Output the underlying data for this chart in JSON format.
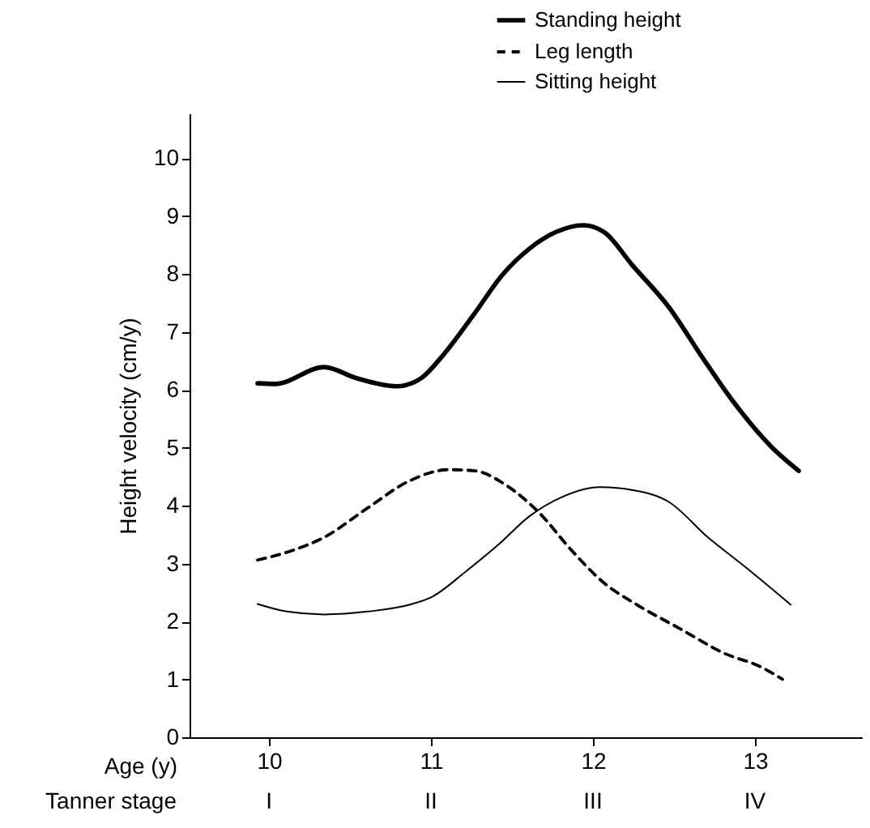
{
  "chart_data": {
    "type": "line",
    "xlabel": "Age (y)",
    "ylabel": "Height velocity (cm/y)",
    "annotations": [
      "Tanner stage",
      "I",
      "II",
      "III",
      "IV"
    ],
    "xlim": [
      9.51,
      13.66
    ],
    "xticks": [
      10,
      11,
      12,
      13
    ],
    "ylim": [
      0,
      10.77
    ],
    "yticks": [
      0,
      1,
      2,
      3,
      4,
      5,
      6,
      7,
      8,
      9,
      10
    ],
    "grid": false,
    "legend": "top right",
    "series": [
      {
        "name": "Standing height",
        "color": "#000000",
        "line_style": "solid",
        "x": [
          9.93,
          10.04,
          10.34,
          10.54,
          10.79,
          10.94,
          11.07,
          11.27,
          11.44,
          11.61,
          11.77,
          11.94,
          12.07,
          12.24,
          12.47,
          12.67,
          12.87,
          13.11,
          13.27
        ],
        "values": [
          6.11,
          6.1,
          6.39,
          6.2,
          6.06,
          6.2,
          6.58,
          7.32,
          7.98,
          8.44,
          8.72,
          8.84,
          8.72,
          8.16,
          7.42,
          6.58,
          5.78,
          4.99,
          4.6
        ]
      },
      {
        "name": "Leg length",
        "color": "#000000",
        "line_style": "dashed",
        "x": [
          9.93,
          10.14,
          10.34,
          10.61,
          10.87,
          11.11,
          11.27,
          11.47,
          11.67,
          11.87,
          12.07,
          12.27,
          12.54,
          12.81,
          13.04,
          13.17
        ],
        "values": [
          3.06,
          3.22,
          3.45,
          3.96,
          4.43,
          4.62,
          4.6,
          4.34,
          3.87,
          3.22,
          2.66,
          2.29,
          1.87,
          1.45,
          1.21,
          1.0
        ]
      },
      {
        "name": "Sitting height",
        "color": "#000000",
        "line_style": "solid",
        "x": [
          9.93,
          10.11,
          10.34,
          10.61,
          10.87,
          11.01,
          11.21,
          11.41,
          11.61,
          11.81,
          12.04,
          12.24,
          12.47,
          12.71,
          12.94,
          13.22
        ],
        "values": [
          2.3,
          2.17,
          2.12,
          2.17,
          2.29,
          2.43,
          2.85,
          3.31,
          3.82,
          4.15,
          4.32,
          4.27,
          4.06,
          3.45,
          2.94,
          2.29
        ]
      }
    ]
  }
}
